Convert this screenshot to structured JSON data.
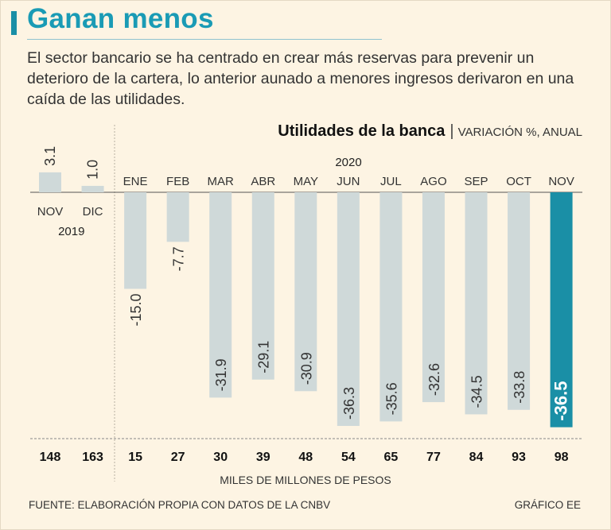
{
  "title": "Ganan menos",
  "subtitle": "El sector bancario se ha centrado en crear más reservas para prevenir un deterioro de la cartera, lo anterior aunado a menores ingresos derivaron en una caída de las utilidades.",
  "source": "FUENTE: ELABORACIÓN PROPIA CON DATOS DE LA CNBV",
  "credit": "GRÁFICO EE",
  "colors": {
    "accent": "#1a9bb5",
    "bar": "#cfd9d9",
    "highlight": "#1a8fa6",
    "background": "#fdf4e3"
  },
  "chart_data": {
    "type": "bar",
    "title": "Utilidades de la banca",
    "unit_label": "VARIACIÓN %, ANUAL",
    "year_labels": [
      "2019",
      "2020"
    ],
    "categories": [
      "NOV",
      "DIC",
      "ENE",
      "FEB",
      "MAR",
      "ABR",
      "MAY",
      "JUN",
      "JUL",
      "AGO",
      "SEP",
      "OCT",
      "NOV"
    ],
    "values": [
      3.1,
      1.0,
      -15.0,
      -7.7,
      -31.9,
      -29.1,
      -30.9,
      -36.3,
      -35.6,
      -32.6,
      -34.5,
      -33.8,
      -36.5
    ],
    "value_labels": [
      "3.1",
      "1.0",
      "-15.0",
      "-7.7",
      "-31.9",
      "-29.1",
      "-30.9",
      "-36.3",
      "-35.6",
      "-32.6",
      "-34.5",
      "-33.8",
      "-36.5"
    ],
    "highlight_index": 12,
    "secondary_values": [
      "148",
      "163",
      "15",
      "27",
      "30",
      "39",
      "48",
      "54",
      "65",
      "77",
      "84",
      "93",
      "98"
    ],
    "secondary_label": "MILES DE MILLONES DE PESOS",
    "ylim": [
      -36.5,
      3.1
    ],
    "grid": false
  }
}
